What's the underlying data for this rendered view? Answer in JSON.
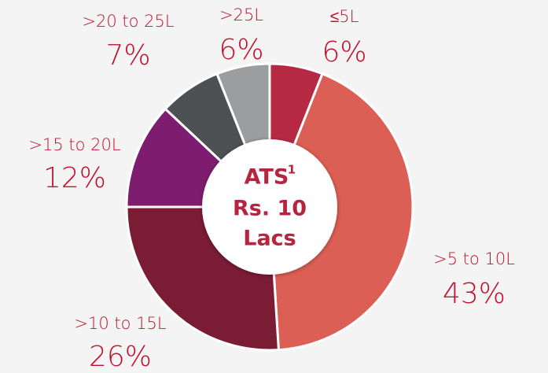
{
  "chart_data": {
    "type": "donut",
    "categories": [
      "≤5L",
      ">5 to 10L",
      ">10 to 15L",
      ">15 to 20L",
      ">20 to 25L",
      ">25L"
    ],
    "values": [
      6,
      43,
      26,
      12,
      7,
      6
    ],
    "value_labels": [
      "6%",
      "43%",
      "26%",
      "12%",
      "7%",
      "6%"
    ],
    "colors": [
      "#b52a42",
      "#dc5f55",
      "#7b1c35",
      "#7e1d6f",
      "#4e5154",
      "#9b9d9f"
    ],
    "center_lines": [
      "ATS",
      "Rs. 10",
      "Lacs"
    ],
    "center_superscript": "1"
  }
}
